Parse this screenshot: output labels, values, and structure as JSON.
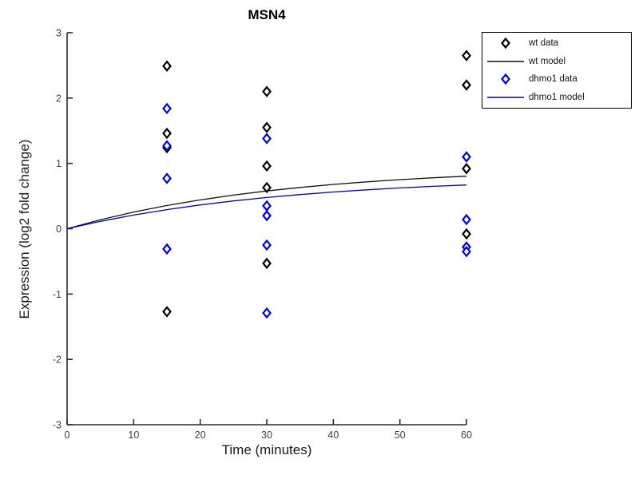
{
  "chart_data": {
    "type": "scatter",
    "title": "MSN4",
    "xlabel": "Time (minutes)",
    "ylabel": "Expression (log2 fold change)",
    "xlim": [
      0,
      60
    ],
    "ylim": [
      -3,
      3
    ],
    "xticks": [
      0,
      10,
      20,
      30,
      40,
      50,
      60
    ],
    "yticks": [
      -3,
      -2,
      -1,
      0,
      1,
      2,
      3
    ],
    "grid": false,
    "legend_position": "outside-top-right",
    "colors": {
      "wt": "#000000",
      "wt_model": "#111111",
      "dhmo1": "#0000dd",
      "dhmo1_model": "#0000bb",
      "axis": "#2b2b2b",
      "tick_label": "#404040",
      "background": "#ffffff",
      "legend_border": "#000000"
    },
    "series": [
      {
        "name": "wt data",
        "kind": "scatter",
        "marker": "diamond",
        "color": "#000000",
        "points": [
          [
            15,
            2.49
          ],
          [
            15,
            1.46
          ],
          [
            15,
            1.24
          ],
          [
            15,
            -1.27
          ],
          [
            30,
            2.1
          ],
          [
            30,
            1.55
          ],
          [
            30,
            0.96
          ],
          [
            30,
            0.63
          ],
          [
            30,
            -0.53
          ],
          [
            60,
            2.65
          ],
          [
            60,
            2.2
          ],
          [
            60,
            0.92
          ],
          [
            60,
            -0.08
          ]
        ]
      },
      {
        "name": "wt model",
        "kind": "line",
        "color": "#111111",
        "x": [
          0,
          5,
          10,
          15,
          20,
          25,
          30,
          35,
          40,
          45,
          50,
          55,
          60
        ],
        "y": [
          0,
          0.137,
          0.255,
          0.356,
          0.441,
          0.515,
          0.578,
          0.632,
          0.678,
          0.717,
          0.751,
          0.78,
          0.804
        ]
      },
      {
        "name": "dhmo1 data",
        "kind": "scatter",
        "marker": "diamond",
        "color": "#0000dd",
        "points": [
          [
            15,
            1.84
          ],
          [
            15,
            1.27
          ],
          [
            15,
            0.77
          ],
          [
            15,
            -0.31
          ],
          [
            30,
            1.38
          ],
          [
            30,
            0.35
          ],
          [
            30,
            0.2
          ],
          [
            30,
            -0.25
          ],
          [
            30,
            -1.29
          ],
          [
            60,
            1.1
          ],
          [
            60,
            0.14
          ],
          [
            60,
            -0.28
          ],
          [
            60,
            -0.35
          ]
        ]
      },
      {
        "name": "dhmo1 model",
        "kind": "line",
        "color": "#0000bb",
        "x": [
          0,
          5,
          10,
          15,
          20,
          25,
          30,
          35,
          40,
          45,
          50,
          55,
          60
        ],
        "y": [
          0,
          0.112,
          0.209,
          0.292,
          0.364,
          0.425,
          0.478,
          0.523,
          0.562,
          0.595,
          0.624,
          0.649,
          0.67
        ]
      }
    ]
  }
}
